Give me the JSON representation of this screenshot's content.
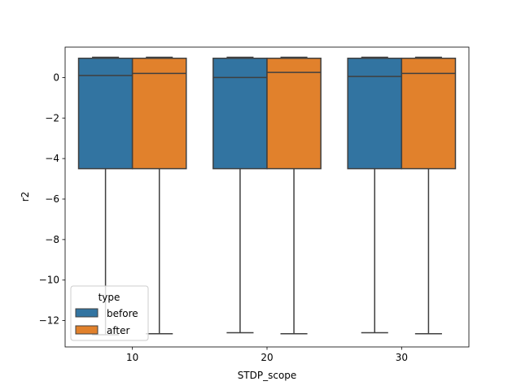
{
  "chart_data": {
    "type": "boxplot",
    "title": "",
    "xlabel": "STDP_scope",
    "ylabel": "r2",
    "categories": [
      "10",
      "20",
      "30"
    ],
    "ylim": [
      -13.3,
      1.5
    ],
    "yticks": [
      0,
      -2,
      -4,
      -6,
      -8,
      -10,
      -12
    ],
    "ytick_labels": [
      "0",
      "−2",
      "−4",
      "−6",
      "−8",
      "−10",
      "−12"
    ],
    "grid": false,
    "legend": {
      "title": "type",
      "placement": "lower-left"
    },
    "colors": {
      "before": "#3274a1",
      "after": "#e1812c",
      "line": "#3f3f3f"
    },
    "series": [
      {
        "name": "before",
        "boxes": [
          {
            "whisker_low": -12.7,
            "q1": -4.5,
            "median": 0.1,
            "q3": 0.95,
            "whisker_high": 1.0
          },
          {
            "whisker_low": -12.6,
            "q1": -4.5,
            "median": 0.0,
            "q3": 0.95,
            "whisker_high": 1.0
          },
          {
            "whisker_low": -12.6,
            "q1": -4.5,
            "median": 0.05,
            "q3": 0.95,
            "whisker_high": 1.0
          }
        ]
      },
      {
        "name": "after",
        "boxes": [
          {
            "whisker_low": -12.65,
            "q1": -4.5,
            "median": 0.2,
            "q3": 0.95,
            "whisker_high": 1.0
          },
          {
            "whisker_low": -12.65,
            "q1": -4.5,
            "median": 0.25,
            "q3": 0.95,
            "whisker_high": 1.0
          },
          {
            "whisker_low": -12.65,
            "q1": -4.5,
            "median": 0.2,
            "q3": 0.95,
            "whisker_high": 1.0
          }
        ]
      }
    ]
  }
}
